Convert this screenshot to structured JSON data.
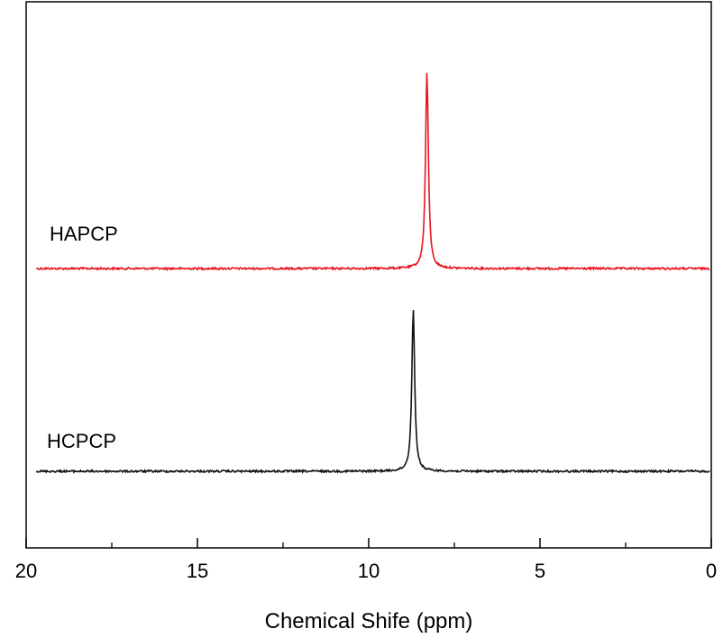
{
  "chart_data": {
    "type": "line",
    "title": "",
    "xlabel": "Chemical Shife (ppm)",
    "ylabel": "",
    "xlim": [
      20,
      0
    ],
    "x_reversed": true,
    "x_ticks": [
      20,
      15,
      10,
      5,
      0
    ],
    "x_minor_step": 2.5,
    "y_ticks": [],
    "grid": false,
    "legend": "none",
    "series": [
      {
        "name": "HAPCP",
        "color": "#e8141c",
        "baseline": 0,
        "peak_x": 8.3,
        "peak_height": 1.0,
        "peak_width": 0.05
      },
      {
        "name": "HCPCP",
        "color": "#111111",
        "baseline": 0,
        "peak_x": 8.7,
        "peak_height": 1.0,
        "peak_width": 0.05
      }
    ]
  }
}
